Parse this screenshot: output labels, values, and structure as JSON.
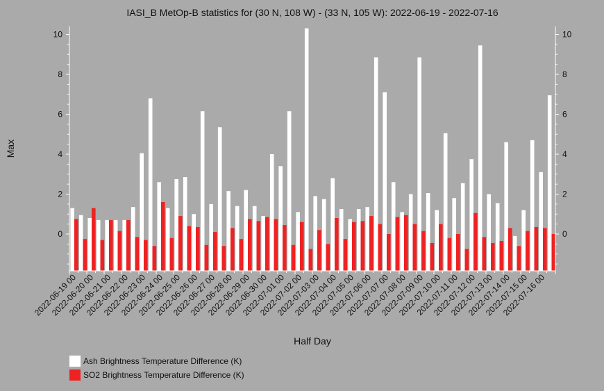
{
  "chart_data": {
    "type": "bar",
    "title": "IASI_B MetOp-B statistics for (30 N, 108 W) - (33 N, 105 W): 2022-06-19 - 2022-07-16",
    "xlabel": "Half Day",
    "ylabel": "Max",
    "ylim": [
      -1.9,
      10.4
    ],
    "yticks": [
      0,
      2,
      4,
      6,
      8,
      10
    ],
    "grid": false,
    "legend_position": "bottom-left",
    "x_tick_labels": [
      "2022-06-19 00",
      "2022-06-20 00",
      "2022-06-21 00",
      "2022-06-22 00",
      "2022-06-23 00",
      "2022-06-24 00",
      "2022-06-25 00",
      "2022-06-26 00",
      "2022-06-27 00",
      "2022-06-28 00",
      "2022-06-29 00",
      "2022-06-30 00",
      "2022-07-01 00",
      "2022-07-02 00",
      "2022-07-03 00",
      "2022-07-04 00",
      "2022-07-05 00",
      "2022-07-06 00",
      "2022-07-07 00",
      "2022-07-08 00",
      "2022-07-09 00",
      "2022-07-10 00",
      "2022-07-11 00",
      "2022-07-12 00",
      "2022-07-13 00",
      "2022-07-14 00",
      "2022-07-15 00",
      "2022-07-16 00"
    ],
    "series": [
      {
        "name": "Ash Brightness Temperature Difference (K)",
        "color": "#ffffff",
        "values": [
          1.3,
          0.95,
          0.8,
          0.7,
          0.7,
          0.7,
          0.7,
          1.35,
          4.05,
          6.8,
          2.6,
          1.3,
          2.75,
          2.85,
          1.0,
          6.15,
          1.5,
          5.35,
          2.15,
          1.4,
          2.2,
          1.4,
          0.9,
          4.0,
          3.4,
          6.15,
          1.1,
          10.3,
          1.9,
          1.75,
          2.8,
          1.25,
          0.75,
          1.25,
          1.35,
          8.85,
          7.1,
          2.6,
          1.1,
          2.0,
          8.85,
          2.05,
          1.2,
          5.05,
          1.8,
          2.55,
          3.75,
          9.45,
          2.0,
          1.55,
          4.6,
          -0.1,
          1.2,
          4.7,
          3.1,
          6.95
        ]
      },
      {
        "name": "SO2 Brightness Temperature Difference (K)",
        "color": "#ee2222",
        "values": [
          0.75,
          -0.25,
          1.3,
          -0.3,
          0.7,
          0.15,
          0.7,
          -0.15,
          -0.3,
          -0.6,
          1.6,
          -0.2,
          0.9,
          0.4,
          0.35,
          -0.55,
          0.1,
          -0.6,
          0.3,
          -0.25,
          0.75,
          0.65,
          0.85,
          0.75,
          0.45,
          -0.55,
          0.6,
          -0.75,
          0.2,
          -0.5,
          0.8,
          -0.25,
          0.6,
          0.65,
          0.9,
          0.5,
          0.0,
          0.85,
          0.95,
          0.5,
          0.15,
          -0.45,
          0.5,
          -0.2,
          0.0,
          -0.75,
          1.05,
          -0.15,
          -0.45,
          -0.35,
          0.3,
          -0.6,
          0.15,
          0.35,
          0.3,
          0.0
        ]
      }
    ]
  }
}
